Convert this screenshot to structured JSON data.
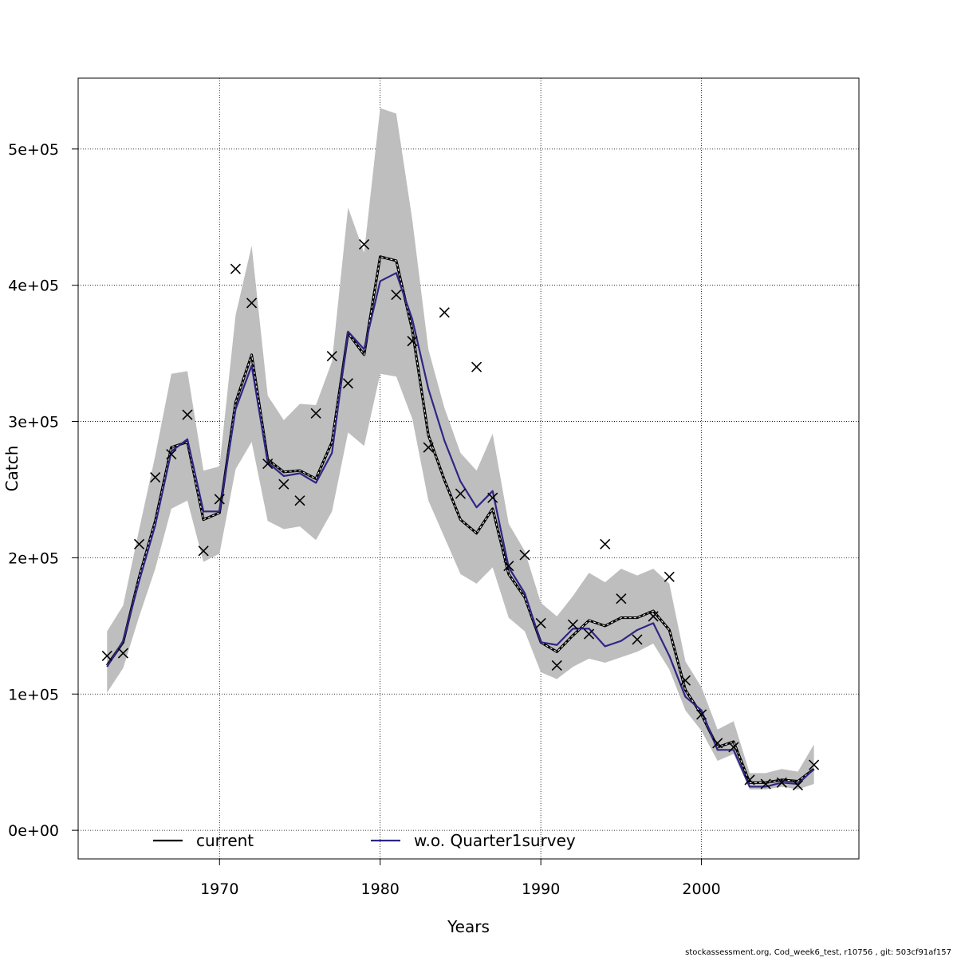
{
  "chart_data": {
    "type": "line",
    "xlabel": "Years",
    "ylabel": "Catch",
    "xlim": [
      1961.2,
      2009.8
    ],
    "ylim": [
      -21000,
      552000
    ],
    "x_ticks": [
      1970,
      1980,
      1990,
      2000
    ],
    "x_tick_labels": [
      "1970",
      "1980",
      "1990",
      "2000"
    ],
    "y_ticks": [
      0,
      100000,
      200000,
      300000,
      400000,
      500000
    ],
    "y_tick_labels": [
      "0e+00",
      "1e+05",
      "2e+05",
      "3e+05",
      "4e+05",
      "5e+05"
    ],
    "grid": true,
    "legend_position": "bottom",
    "footer": "stockassessment.org, Cod_week6_test, r10756 , git: 503cf91af157",
    "colors": {
      "current": "#000000",
      "wo": "#2e2585",
      "band": "#bebebe",
      "observed": "#000000"
    },
    "x": [
      1963,
      1964,
      1965,
      1966,
      1967,
      1968,
      1969,
      1970,
      1971,
      1972,
      1973,
      1974,
      1975,
      1976,
      1977,
      1978,
      1979,
      1980,
      1981,
      1982,
      1983,
      1984,
      1985,
      1986,
      1987,
      1988,
      1989,
      1990,
      1991,
      1992,
      1993,
      1994,
      1995,
      1996,
      1997,
      1998,
      1999,
      2000,
      2001,
      2002,
      2003,
      2004,
      2005,
      2006,
      2007
    ],
    "confidence_band": {
      "lower": [
        101000,
        119000,
        157000,
        192000,
        236000,
        242000,
        197000,
        203000,
        265000,
        285000,
        227000,
        221000,
        223000,
        213000,
        234000,
        292000,
        282000,
        335000,
        333000,
        302000,
        242000,
        215000,
        188000,
        181000,
        193000,
        156000,
        146000,
        116000,
        111000,
        120000,
        126000,
        123000,
        127000,
        131000,
        137000,
        118000,
        88000,
        73000,
        51000,
        56000,
        30000,
        30000,
        32000,
        30000,
        34000
      ],
      "upper": [
        146000,
        165000,
        221000,
        275000,
        335000,
        337000,
        264000,
        267000,
        378000,
        429000,
        319000,
        301000,
        313000,
        312000,
        344000,
        457000,
        424000,
        530000,
        526000,
        448000,
        353000,
        310000,
        277000,
        264000,
        291000,
        225000,
        205000,
        167000,
        157000,
        172000,
        189000,
        182000,
        192000,
        187000,
        192000,
        181000,
        124000,
        105000,
        74000,
        80000,
        42000,
        42000,
        45000,
        43000,
        63000
      ]
    },
    "series": [
      {
        "name": "current",
        "style": "solid-black-with-dashed-white-center",
        "values": [
          121000,
          138000,
          186000,
          227000,
          281000,
          285000,
          228000,
          233000,
          314000,
          349000,
          272000,
          263000,
          264000,
          258000,
          285000,
          365000,
          349000,
          421000,
          418000,
          367000,
          290000,
          257000,
          228000,
          218000,
          236000,
          188000,
          171000,
          138000,
          131000,
          143000,
          154000,
          150000,
          156000,
          156000,
          161000,
          147000,
          103000,
          85000,
          61000,
          65000,
          35000,
          35000,
          37000,
          36000,
          45000
        ]
      },
      {
        "name": "w.o. Quarter1survey",
        "style": "solid-blue",
        "values": [
          120000,
          139000,
          183000,
          224000,
          278000,
          287000,
          234000,
          234000,
          309000,
          341000,
          270000,
          260000,
          262000,
          255000,
          277000,
          366000,
          353000,
          403000,
          409000,
          375000,
          324000,
          286000,
          256000,
          237000,
          249000,
          193000,
          174000,
          138000,
          136000,
          148000,
          148000,
          135000,
          139000,
          147000,
          152000,
          128000,
          98000,
          88000,
          59000,
          59000,
          32000,
          32000,
          35000,
          34000,
          45000
        ]
      }
    ],
    "observed": {
      "marker": "x",
      "values": [
        128000,
        130000,
        210000,
        259000,
        276000,
        305000,
        205000,
        243000,
        412000,
        387000,
        269000,
        254000,
        242000,
        306000,
        348000,
        328000,
        430000,
        null,
        393000,
        359000,
        281000,
        380000,
        247000,
        340000,
        244000,
        194000,
        202000,
        152000,
        121000,
        151000,
        144000,
        210000,
        170000,
        140000,
        157000,
        186000,
        110000,
        85000,
        64000,
        61000,
        37000,
        34000,
        35000,
        33000,
        48000
      ]
    },
    "legend": [
      {
        "series": "current",
        "label": "current"
      },
      {
        "series": "wo",
        "label": "w.o. Quarter1survey"
      }
    ]
  }
}
